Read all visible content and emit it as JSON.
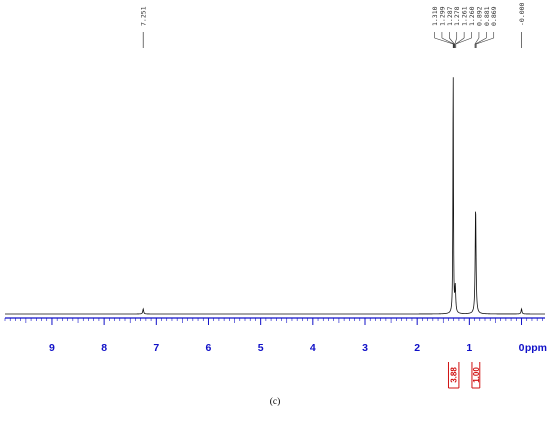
{
  "caption": "(c)",
  "colors": {
    "axis": "#1010c8",
    "spectrum": "#111111",
    "integral": "#d01010",
    "label": "#333333"
  },
  "chart_data": {
    "type": "line",
    "xlabel": "ppm",
    "x_reversed": true,
    "xlim": [
      9.9,
      -0.45
    ],
    "ticks": [
      9,
      8,
      7,
      6,
      5,
      4,
      3,
      2,
      1,
      0
    ],
    "tick_labels": [
      "9",
      "8",
      "7",
      "6",
      "5",
      "4",
      "3",
      "2",
      "1",
      "0"
    ],
    "grid": false,
    "peak_labels": {
      "single": [
        {
          "text": "7.251",
          "ppm": 7.251
        },
        {
          "text": "-0.000",
          "ppm": 0.0
        }
      ],
      "group_center_ppm": 1.1,
      "group": [
        {
          "text": "1.310",
          "ppm": 1.31
        },
        {
          "text": "1.299",
          "ppm": 1.299
        },
        {
          "text": "1.287",
          "ppm": 1.287
        },
        {
          "text": "1.278",
          "ppm": 1.278
        },
        {
          "text": "1.261",
          "ppm": 1.261
        },
        {
          "text": "1.260",
          "ppm": 1.26
        },
        {
          "text": "0.892",
          "ppm": 0.892
        },
        {
          "text": "0.881",
          "ppm": 0.881
        },
        {
          "text": "0.869",
          "ppm": 0.869
        }
      ]
    },
    "peaks": [
      {
        "ppm": 7.251,
        "rel_height": 0.02
      },
      {
        "ppm": 1.31,
        "rel_height": 0.98
      },
      {
        "ppm": 1.27,
        "rel_height": 0.1
      },
      {
        "ppm": 0.88,
        "rel_height": 0.42
      },
      {
        "ppm": 0.0,
        "rel_height": 0.02
      }
    ],
    "integrals": [
      {
        "from": 1.4,
        "to": 1.2,
        "value": "3.88"
      },
      {
        "from": 0.95,
        "to": 0.8,
        "value": "1.00"
      }
    ]
  }
}
